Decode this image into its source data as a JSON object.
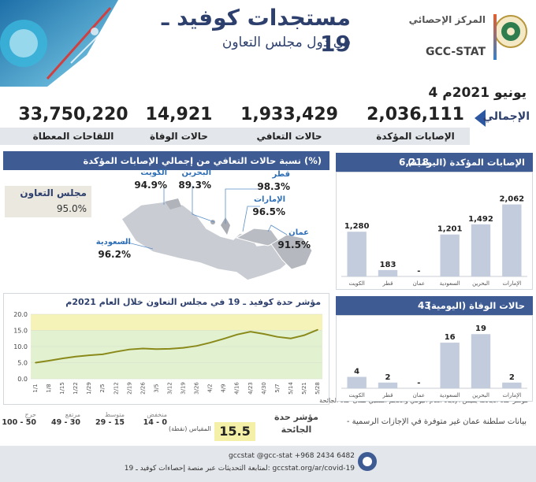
{
  "header": {
    "title_main": "مستجدات كوفيد ـ 19",
    "title_sub": "في دول مجلس التعاون",
    "logo_ar": "المركز الإحصائي",
    "logo_en": "GCC-STAT"
  },
  "date": "4 يونيو 2021م",
  "totals": {
    "label": "الإجمالي",
    "items": [
      {
        "label": "الإصابات المؤكدة",
        "value": "2,036,111"
      },
      {
        "label": "حالات التعافي",
        "value": "1,933,429"
      },
      {
        "label": "حالات الوفاة",
        "value": "14,921"
      },
      {
        "label": "اللقاحات المعطاة",
        "value": "33,750,220"
      }
    ]
  },
  "recovery": {
    "title": "نسبة حالات التعافي من إجمالي الإصابات المؤكدة (%)",
    "gcc_label": "مجلس التعاون",
    "gcc_value": "95.0%",
    "countries": [
      {
        "name": "الكويت",
        "value": "94.9%"
      },
      {
        "name": "البحرين",
        "value": "89.3%"
      },
      {
        "name": "قطر",
        "value": "98.3%"
      },
      {
        "name": "الإمارات",
        "value": "96.5%"
      },
      {
        "name": "عمان",
        "value": "91.5%"
      },
      {
        "name": "السعودية",
        "value": "96.2%"
      }
    ]
  },
  "trend": {
    "title": "مؤشر حدة كوفيد ـ 19 في مجلس التعاون خلال العام 2021م",
    "note": "مؤشر حدة الجائحة يقيس الإتجاه العام اليومي والحجم النسبي لمدى حدة الجائحة"
  },
  "severity": {
    "title": "مؤشر حدة الجائحة",
    "value": "15.5",
    "scale_label": "المقياس (نقطة)",
    "levels": [
      {
        "label": "منخفض",
        "range": "14 - 0",
        "color": "#dff0c8"
      },
      {
        "label": "متوسط",
        "range": "29 - 15",
        "color": "#f4f0a8"
      },
      {
        "label": "مرتفع",
        "range": "49 - 30",
        "color": "#f8d6a8"
      },
      {
        "label": "حرج",
        "range": "100 - 50",
        "color": "#f5c2c2"
      }
    ]
  },
  "cases_panel": {
    "title": "الإصابات المؤكدة (اليومية)",
    "total": "6,218"
  },
  "deaths_panel": {
    "title": "حالات الوفاة (اليومية)",
    "total": "43"
  },
  "oman_note": "- بيانات سلطنة عمان غير متوفرة في الإجازات الرسمية",
  "footer": {
    "social": "gccstat   @gcc-stat   +968 2434 6482",
    "link": "لمتابعة التحديثات عبر منصة إحصاءات كوفيد ـ 19:   gccstat.org/ar/covid-19"
  },
  "chart_data": [
    {
      "type": "bar",
      "title": "الإصابات المؤكدة (اليومية)",
      "categories": [
        "الكويت",
        "قطر",
        "عمان",
        "السعودية",
        "البحرين",
        "الإمارات"
      ],
      "values": [
        1280,
        183,
        null,
        1201,
        1492,
        2062
      ],
      "labels": [
        "1,280",
        "183",
        "-",
        "1,201",
        "1,492",
        "2,062"
      ],
      "ylim": [
        0,
        2300
      ]
    },
    {
      "type": "bar",
      "title": "حالات الوفاة (اليومية)",
      "categories": [
        "الكويت",
        "قطر",
        "عمان",
        "السعودية",
        "البحرين",
        "الإمارات"
      ],
      "values": [
        4,
        2,
        null,
        16,
        19,
        2
      ],
      "labels": [
        "4",
        "2",
        "-",
        "16",
        "19",
        "2"
      ],
      "ylim": [
        0,
        21
      ]
    },
    {
      "type": "line",
      "title": "مؤشر حدة كوفيد ـ 19 في مجلس التعاون خلال العام 2021م",
      "x": [
        "1/1",
        "1/8",
        "1/15",
        "1/22",
        "1/29",
        "2/5",
        "2/12",
        "2/19",
        "2/26",
        "3/5",
        "3/12",
        "3/19",
        "3/26",
        "4/2",
        "4/9",
        "4/16",
        "4/23",
        "4/30",
        "5/7",
        "5/14",
        "5/21",
        "5/28"
      ],
      "values": [
        5.0,
        5.6,
        6.3,
        6.9,
        7.3,
        7.6,
        8.4,
        9.1,
        9.4,
        9.2,
        9.3,
        9.6,
        10.2,
        11.2,
        12.4,
        13.7,
        14.6,
        13.9,
        13.0,
        12.5,
        13.5,
        15.2
      ],
      "ylim": [
        0,
        20
      ],
      "yticks": [
        "0.0",
        "5.0",
        "10.0",
        "15.0",
        "20.0"
      ],
      "bands": [
        {
          "from": 0,
          "to": 15,
          "color": "#e2f1d0"
        },
        {
          "from": 15,
          "to": 20,
          "color": "#f6f3b8"
        }
      ],
      "line_color": "#8a8a1a"
    }
  ]
}
